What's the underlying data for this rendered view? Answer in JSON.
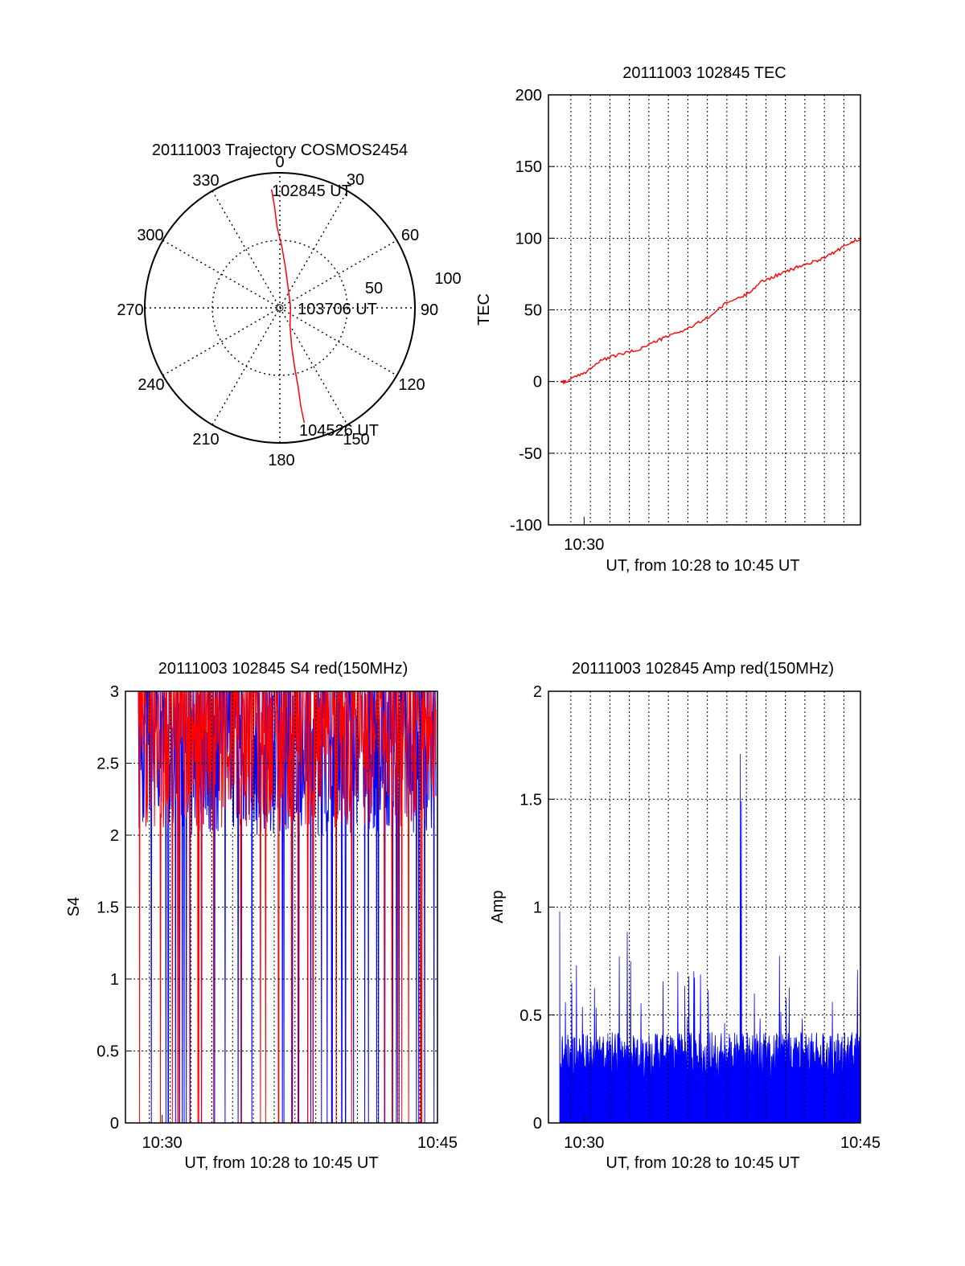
{
  "chart_data": [
    {
      "type": "polar",
      "title": "20111003 Trajectory COSMOS2454",
      "azimuth_labels": [
        "0",
        "30",
        "60",
        "90",
        "120",
        "150",
        "180",
        "210",
        "240",
        "270",
        "300",
        "330"
      ],
      "radial_labels": [
        "50",
        "100"
      ],
      "rlim": [
        0,
        100
      ],
      "series": [
        {
          "color": "#ff0000",
          "points": [
            {
              "az": 356,
              "r": 88
            },
            {
              "az": 357,
              "r": 75
            },
            {
              "az": 358,
              "r": 60
            },
            {
              "az": 2,
              "r": 45
            },
            {
              "az": 8,
              "r": 30
            },
            {
              "az": 25,
              "r": 15
            },
            {
              "az": 90,
              "r": 8
            },
            {
              "az": 150,
              "r": 15
            },
            {
              "az": 163,
              "r": 30
            },
            {
              "az": 166,
              "r": 45
            },
            {
              "az": 167,
              "r": 60
            },
            {
              "az": 168,
              "r": 75
            },
            {
              "az": 168,
              "r": 87
            }
          ]
        }
      ],
      "annotations": [
        "102845 UT",
        "103706 UT",
        "104526 UT"
      ],
      "grid": true
    },
    {
      "type": "line",
      "title": "20111003 102845 TEC",
      "xlabel": "UT, from 10:28 to 10:45 UT",
      "ylabel": "TEC",
      "xlim": [
        0,
        17.5
      ],
      "ylim": [
        -100,
        200
      ],
      "y_ticks": [
        "-100",
        "-50",
        "0",
        "50",
        "100",
        "150",
        "200"
      ],
      "x_ticks": [
        {
          "x": 2,
          "label": "10:30"
        }
      ],
      "grid": true,
      "series": [
        {
          "color": "#ff0000",
          "x": [
            0.7,
            1,
            2,
            3,
            4,
            5,
            6,
            7,
            8,
            9,
            10,
            11,
            12,
            13,
            14,
            15,
            16,
            17,
            17.5
          ],
          "y": [
            0,
            0,
            6,
            15,
            19,
            22,
            28,
            33,
            38,
            45,
            55,
            60,
            70,
            75,
            80,
            84,
            90,
            97,
            100
          ]
        }
      ]
    },
    {
      "type": "line",
      "title": "20111003 102845 S4 red(150MHz)",
      "xlabel": "UT, from 10:28 to 10:45 UT",
      "ylabel": "S4",
      "xlim": [
        0,
        17
      ],
      "ylim": [
        0,
        3
      ],
      "y_ticks": [
        "0",
        "0.5",
        "1",
        "1.5",
        "2",
        "2.5",
        "3"
      ],
      "x_ticks": [
        {
          "x": 2,
          "label": "10:30"
        },
        {
          "x": 17,
          "label": "10:45"
        }
      ],
      "grid": true,
      "series": [
        {
          "color": "#0000ff",
          "samples": 800,
          "base": 2.5,
          "spread": 0.5,
          "seed": 7
        },
        {
          "color": "#ff0000",
          "samples": 700,
          "base": 2.55,
          "spread": 0.5,
          "seed": 13
        }
      ]
    },
    {
      "type": "bar",
      "title": "20111003 102845 Amp red(150MHz)",
      "xlabel": "UT, from 10:28 to 10:45 UT",
      "ylabel": "Amp",
      "xlim": [
        0,
        17.5
      ],
      "ylim": [
        0,
        2
      ],
      "y_ticks": [
        "0",
        "0.5",
        "1",
        "1.5",
        "2"
      ],
      "x_ticks": [
        {
          "x": 2,
          "label": "10:30"
        },
        {
          "x": 17.5,
          "label": "10:45"
        }
      ],
      "grid": true,
      "series": [
        {
          "color": "#0000ff",
          "samples": 900,
          "base": 0.3,
          "spread": 0.2,
          "max": 1.71,
          "seed": 21
        }
      ]
    }
  ]
}
